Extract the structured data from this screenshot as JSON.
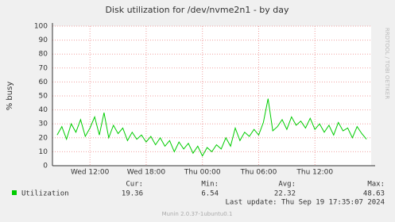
{
  "chart_data": {
    "type": "line",
    "title": "Disk utilization for /dev/nvme2n1 - by day",
    "y_label": "% busy",
    "side_text": "RRDTOOL / TOBI OETIKER",
    "x": [
      "Wed 08:30",
      "Wed 09:00",
      "Wed 09:30",
      "Wed 10:00",
      "Wed 10:30",
      "Wed 11:00",
      "Wed 11:30",
      "Wed 12:00",
      "Wed 12:30",
      "Wed 13:00",
      "Wed 13:30",
      "Wed 14:00",
      "Wed 14:30",
      "Wed 15:00",
      "Wed 15:30",
      "Wed 16:00",
      "Wed 16:30",
      "Wed 17:00",
      "Wed 17:30",
      "Wed 18:00",
      "Wed 18:30",
      "Wed 19:00",
      "Wed 19:30",
      "Wed 20:00",
      "Wed 20:30",
      "Wed 21:00",
      "Wed 21:30",
      "Wed 22:00",
      "Wed 22:30",
      "Wed 23:00",
      "Wed 23:30",
      "Thu 00:00",
      "Thu 00:30",
      "Thu 01:00",
      "Thu 01:30",
      "Thu 02:00",
      "Thu 02:30",
      "Thu 03:00",
      "Thu 03:30",
      "Thu 04:00",
      "Thu 04:30",
      "Thu 05:00",
      "Thu 05:30",
      "Thu 06:00",
      "Thu 06:30",
      "Thu 07:00",
      "Thu 07:30",
      "Thu 08:00",
      "Thu 08:30",
      "Thu 09:00",
      "Thu 09:30",
      "Thu 10:00",
      "Thu 10:30",
      "Thu 11:00",
      "Thu 11:30",
      "Thu 12:00",
      "Thu 12:30",
      "Thu 13:00",
      "Thu 13:30",
      "Thu 14:00",
      "Thu 14:30",
      "Thu 15:00",
      "Thu 15:30",
      "Thu 16:00",
      "Thu 16:30",
      "Thu 17:00",
      "Thu 17:30"
    ],
    "series": [
      {
        "name": "Utilization",
        "color": "#00cc00",
        "values": [
          22,
          28,
          19,
          30,
          24,
          33,
          21,
          27,
          35,
          22,
          38,
          20,
          29,
          23,
          27,
          18,
          24,
          19,
          22,
          17,
          21,
          15,
          20,
          14,
          18,
          10,
          17,
          12,
          16,
          9,
          14,
          7,
          13,
          10,
          15,
          12,
          20,
          14,
          27,
          18,
          24,
          21,
          26,
          22,
          31,
          48,
          25,
          28,
          33,
          26,
          35,
          29,
          32,
          27,
          34,
          26,
          30,
          24,
          29,
          22,
          31,
          25,
          27,
          20,
          28,
          23,
          19
        ]
      }
    ],
    "xlim": [
      "Wed 08:00",
      "Thu 18:00"
    ],
    "xticks": [
      "Wed 12:00",
      "Wed 18:00",
      "Thu 00:00",
      "Thu 06:00",
      "Thu 12:00"
    ],
    "ylim": [
      0,
      100
    ],
    "yticks": [
      0,
      10,
      20,
      30,
      40,
      50,
      60,
      70,
      80,
      90,
      100
    ],
    "grid": true,
    "grid_color": "#f0a0a0",
    "stats": [
      {
        "label": "Cur:",
        "value": 19.36
      },
      {
        "label": "Min:",
        "value": 6.54
      },
      {
        "label": "Avg:",
        "value": 22.32
      },
      {
        "label": "Max:",
        "value": 48.63
      }
    ],
    "last_update": "Last update: Thu Sep 19 17:35:07 2024",
    "footer": "Munin 2.0.37-1ubuntu0.1"
  }
}
